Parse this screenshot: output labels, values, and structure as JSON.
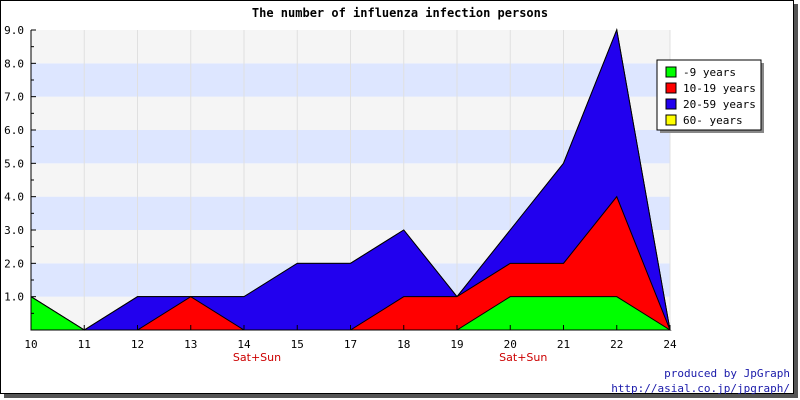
{
  "chart_data": {
    "type": "area",
    "stacked": true,
    "title": "The number of influenza infection persons",
    "xlabel": "",
    "ylabel": "",
    "categories": [
      "10",
      "11",
      "12",
      "13",
      "14",
      "15",
      "17",
      "18",
      "19",
      "20",
      "21",
      "22",
      "24"
    ],
    "category_notes": [
      {
        "category": "14",
        "text": "Sat+Sun"
      },
      {
        "category": "20",
        "text": "Sat+Sun"
      }
    ],
    "ylim": [
      0,
      9
    ],
    "yticks": [
      "1.0",
      "2.0",
      "3.0",
      "4.0",
      "5.0",
      "6.0",
      "7.0",
      "8.0",
      "9.0"
    ],
    "grid": "horizontal bands",
    "legend_position": "top-right",
    "series": [
      {
        "name": "-9 years",
        "color": "#00ff00",
        "values": [
          1,
          0,
          0,
          0,
          0,
          0,
          0,
          0,
          0,
          1,
          1,
          1,
          0
        ]
      },
      {
        "name": "10-19 years",
        "color": "#ff0000",
        "values": [
          0,
          0,
          0,
          1,
          0,
          0,
          0,
          1,
          1,
          1,
          1,
          3,
          0
        ]
      },
      {
        "name": "20-59 years",
        "color": "#2200ee",
        "values": [
          0,
          0,
          1,
          0,
          1,
          2,
          2,
          2,
          0,
          1,
          3,
          5,
          0
        ]
      },
      {
        "name": "60- years",
        "color": "#ffff00",
        "values": [
          0,
          0,
          0,
          0,
          0,
          0,
          0,
          0,
          0,
          0,
          0,
          0,
          0
        ]
      }
    ],
    "colors": {
      "band_light": "#f5f5f5",
      "band_blue": "#dde6ff",
      "note": "#cc0000"
    }
  },
  "footer": {
    "line1": "produced by JpGraph",
    "line2": "http://asial.co.jp/jpgraph/"
  }
}
